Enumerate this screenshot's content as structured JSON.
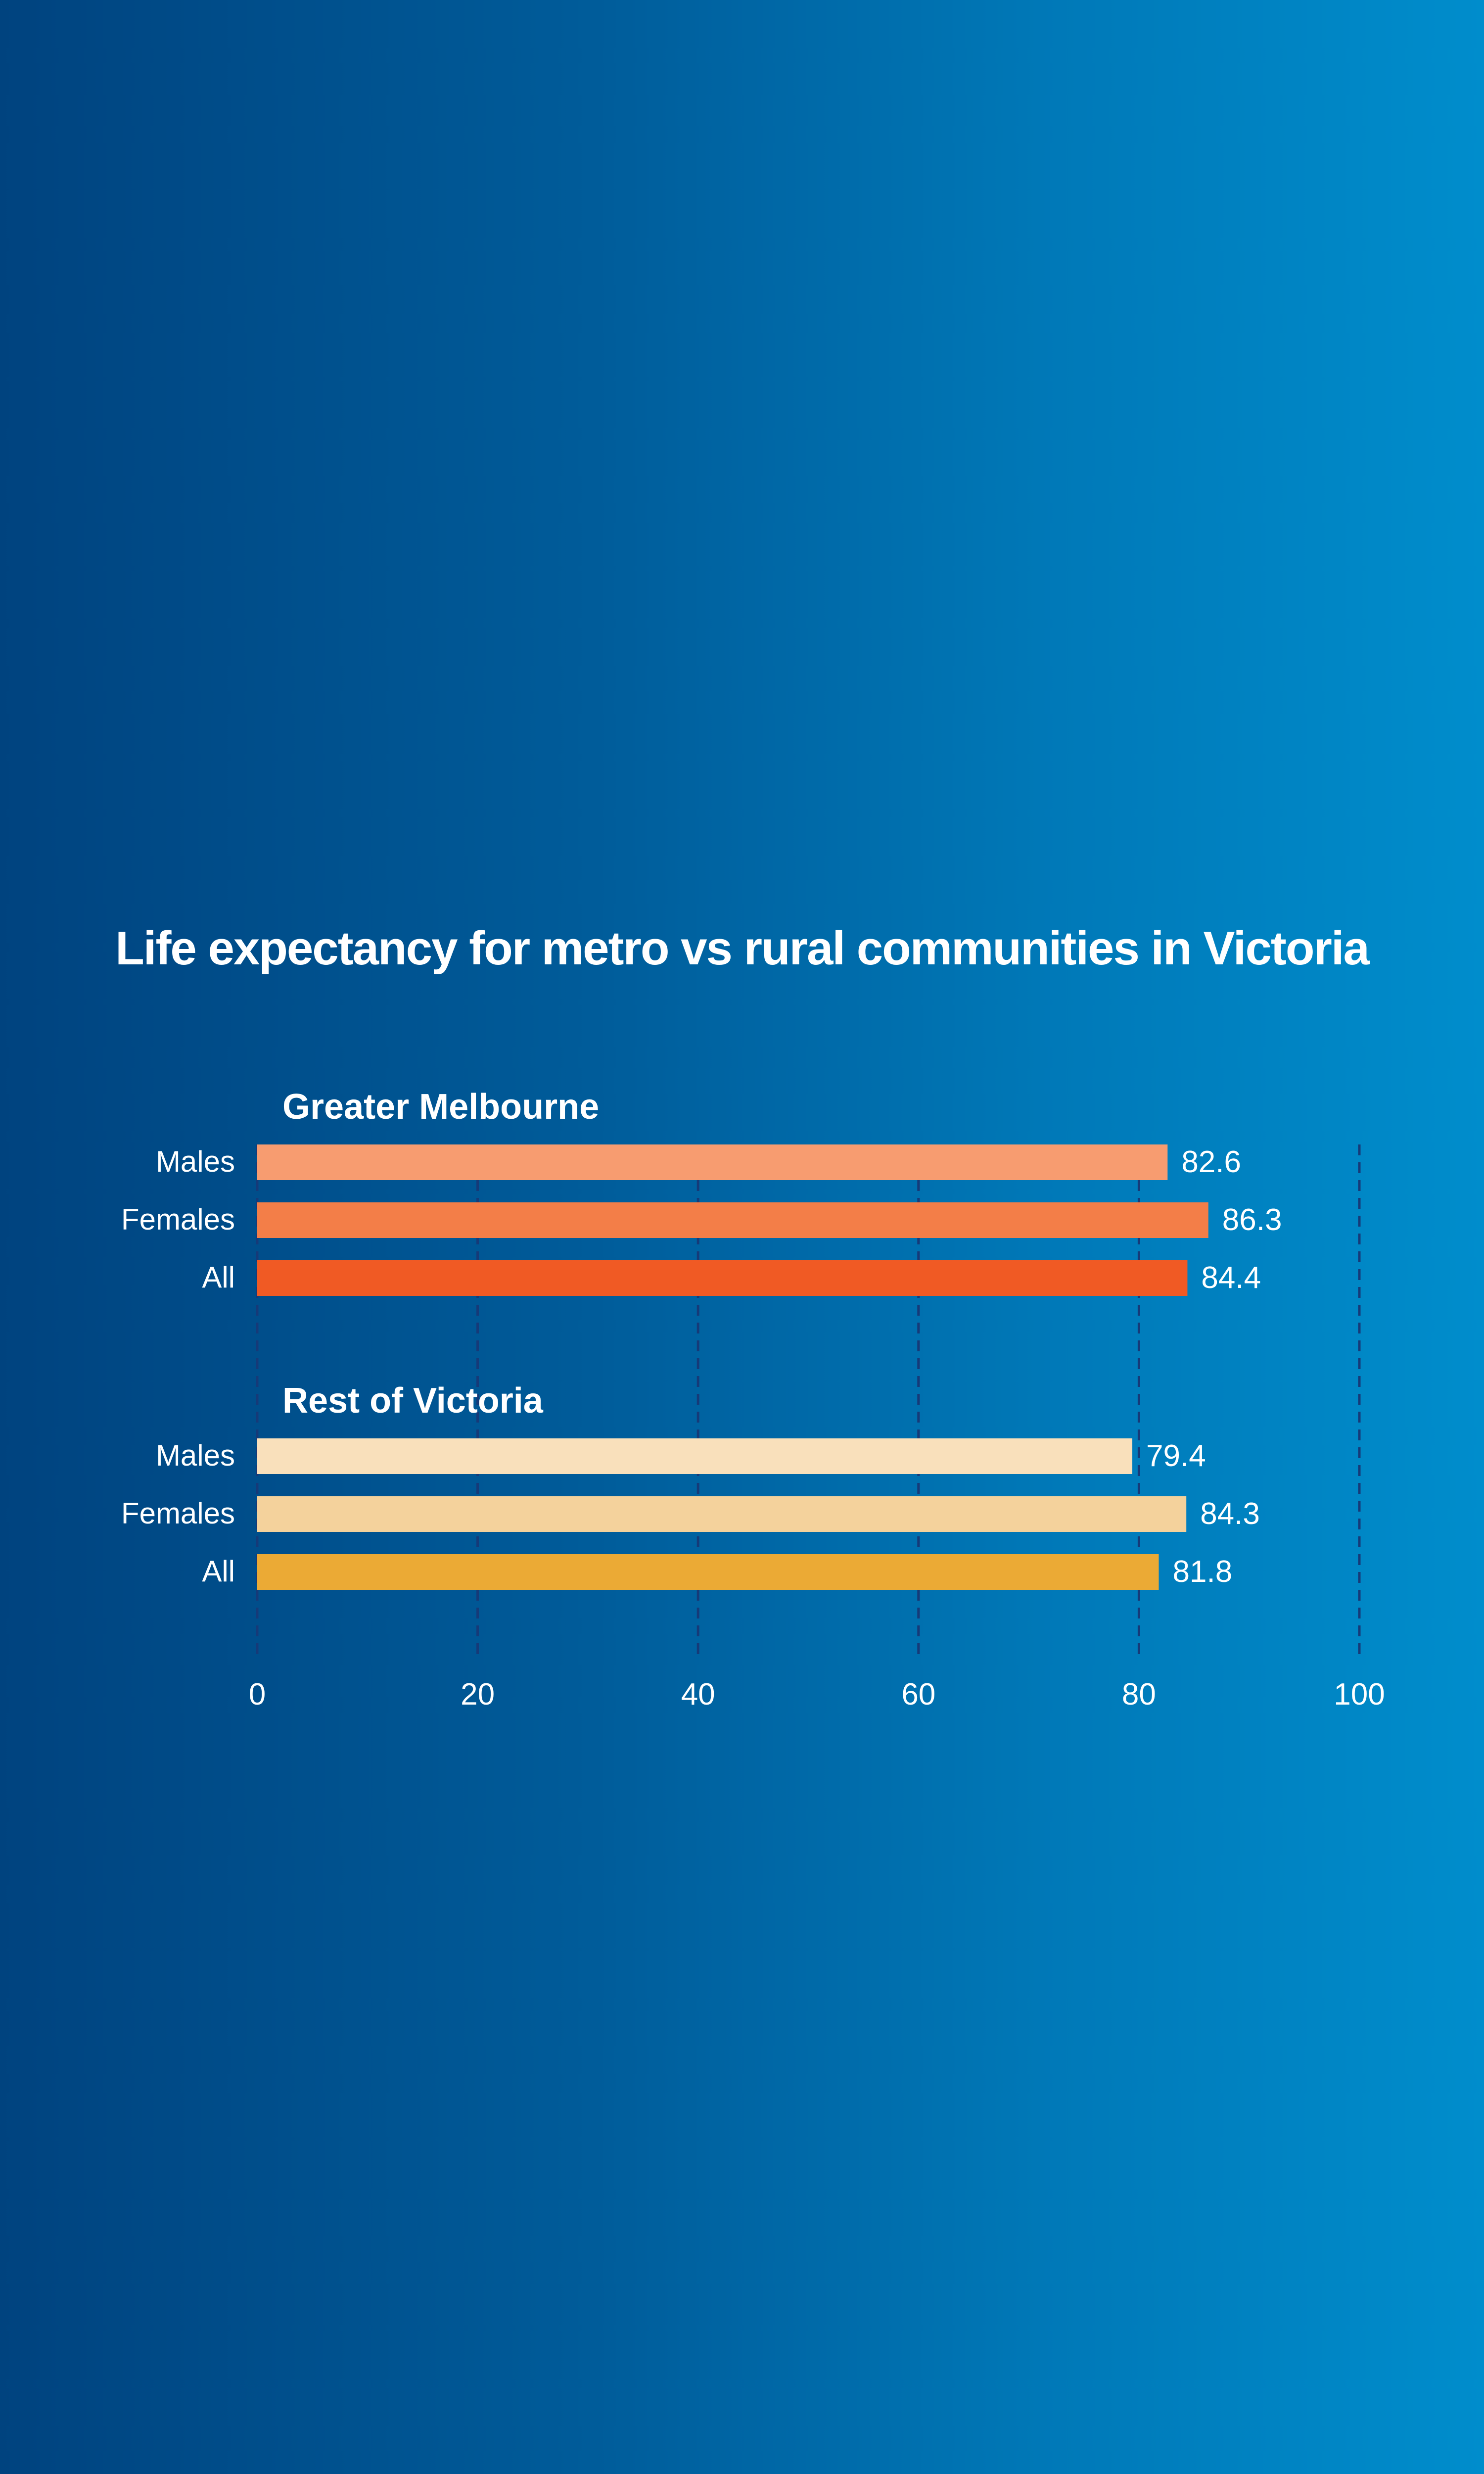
{
  "chart_data": {
    "type": "bar",
    "orientation": "horizontal",
    "title": "Life expectancy for metro vs rural communities in Victoria",
    "xlabel": "",
    "ylabel": "",
    "xlim": [
      0,
      100
    ],
    "xticks": [
      "0",
      "20",
      "40",
      "60",
      "80",
      "100"
    ],
    "grid": true,
    "groups": [
      {
        "name": "Greater Melbourne",
        "categories": [
          "Males",
          "Females",
          "All"
        ],
        "values": [
          82.6,
          86.3,
          84.4
        ],
        "labels": [
          "82.6",
          "86.3",
          "84.4"
        ],
        "colors": [
          "#f79c70",
          "#f37e48",
          "#f05a24"
        ]
      },
      {
        "name": "Rest of Victoria",
        "categories": [
          "Males",
          "Females",
          "All"
        ],
        "values": [
          79.4,
          84.3,
          81.8
        ],
        "labels": [
          "79.4",
          "84.3",
          "81.8"
        ],
        "colors": [
          "#f9e0bb",
          "#f4d29c",
          "#ebaa35"
        ]
      }
    ]
  },
  "colors": {
    "gridline": "#163a78",
    "text": "#ffffff"
  }
}
